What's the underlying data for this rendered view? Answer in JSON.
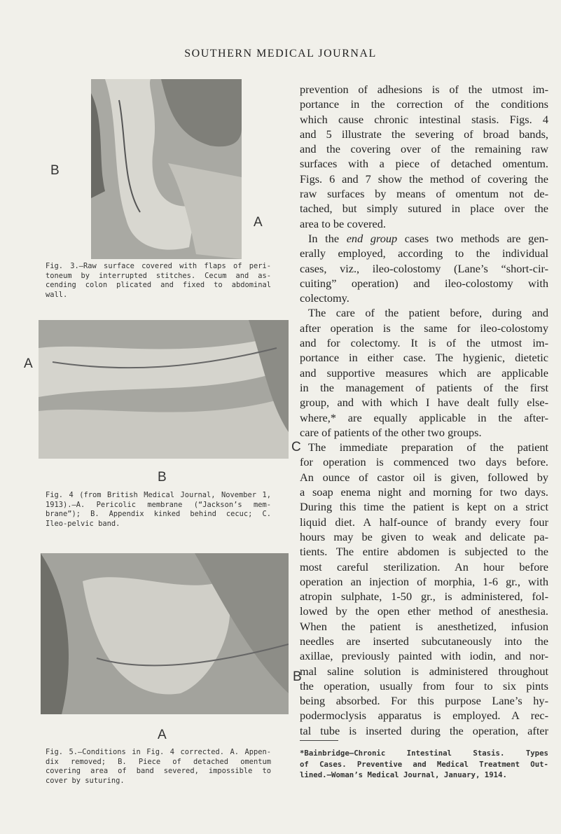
{
  "header": {
    "title": "SOUTHERN MEDICAL JOURNAL"
  },
  "figures": [
    {
      "labels": [
        "B",
        "A"
      ],
      "caption_lines": [
        "Fig. 3.—Raw surface covered with flaps of peri-",
        "toneum by interrupted stitches. Cecum and as-",
        "cending colon plicated and fixed to abdominal",
        "wall."
      ]
    },
    {
      "labels": [
        "A",
        "C",
        "B"
      ],
      "caption_lines": [
        "Fig. 4 (from British Medical Journal, November 1,",
        "1913).—A. Pericolic membrane (“Jackson’s mem-",
        "brane”); B. Appendix kinked behind cecuc; C.",
        "Ileo-pelvic band."
      ]
    },
    {
      "labels": [
        "B",
        "A"
      ],
      "caption_lines": [
        "Fig. 5.—Conditions in Fig. 4 corrected. A. Appen-",
        "dix removed; B. Piece of detached omentum",
        "covering area of band severed, impossible to",
        "cover by suturing."
      ]
    }
  ],
  "body": {
    "paragraphs": [
      {
        "lines": [
          "prevention of adhesions is of the utmost im-",
          "portance in the correction of the conditions",
          "which cause chronic intestinal stasis. Figs. 4",
          "and 5 illustrate the severing of broad bands,",
          "and the covering over of the remaining raw",
          "surfaces with a piece of detached omentum.",
          "Figs. 6 and 7 show the method of covering the",
          "raw surfaces by means of omentum not de-",
          "tached, but simply sutured in place over the",
          "area to be covered."
        ]
      },
      {
        "lines": [
          [
            "In the ",
            {
              "text": "end group",
              "style": "italic"
            },
            " cases two methods are gen-"
          ],
          "erally employed, according to the individual",
          "cases, viz., ileo-colostomy (Lane’s “short-cir-",
          "cuiting” operation) and ileo-colostomy with",
          "colectomy."
        ]
      },
      {
        "lines": [
          "The care of the patient before, during and",
          "after operation is the same for ileo-colostomy",
          "and for colectomy. It is of the utmost im-",
          "portance in either case. The hygienic, dietetic",
          "and supportive measures which are applicable",
          "in the management of patients of the first",
          "group, and with which I have dealt fully else-",
          "where,* are equally applicable in the after-",
          "care of patients of the other two groups."
        ]
      },
      {
        "lines": [
          "The immediate preparation of the patient",
          "for operation is commenced two days before.",
          "An ounce of castor oil is given, followed by",
          "a soap enema night and morning for two days.",
          "During this time the patient is kept on a strict",
          "liquid diet. A half-ounce of brandy every four",
          "hours may be given to weak and delicate pa-",
          "tients. The entire abdomen is subjected to the",
          "most careful sterilization. An hour before",
          "operation an injection of morphia, 1-6 gr., with",
          "atropin sulphate, 1-50 gr., is administered, fol-",
          "lowed by the open ether method of anesthesia.",
          "When the patient is anesthetized, infusion",
          "needles are inserted subcutaneously into the",
          "axillae, previously painted with iodin, and nor-",
          "mal saline solution is administered throughout",
          "the operation, usually from four to six pints",
          "being absorbed. For this purpose Lane’s hy-",
          "podermoclysis apparatus is employed. A rec-",
          "tal tube is inserted during the operation, after"
        ]
      }
    ]
  },
  "footnote": {
    "lines": [
      "*Bainbridge—Chronic Intestinal Stasis. Types",
      "of Cases. Preventive and Medical Treatment Out-",
      "lined.—Woman’s Medical Journal, January, 1914."
    ]
  }
}
